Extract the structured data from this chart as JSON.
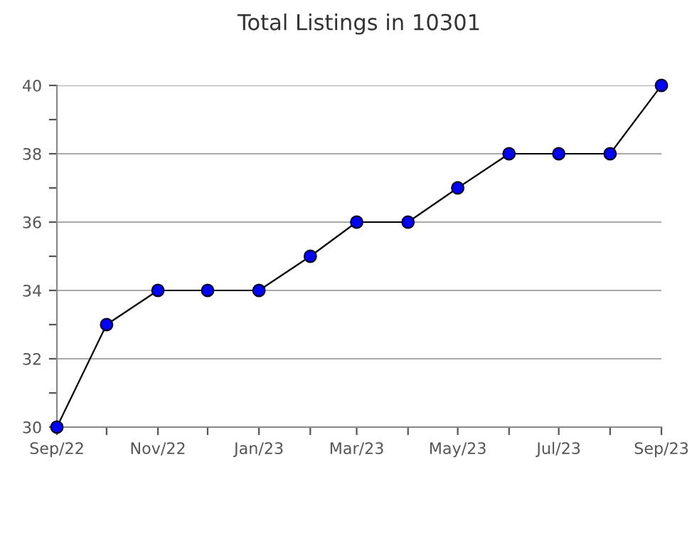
{
  "chart_data": {
    "type": "line",
    "title": "Total Listings in 10301",
    "x": [
      "2022-09",
      "2022-10",
      "2022-11",
      "2022-12",
      "2023-01",
      "2023-02",
      "2023-03",
      "2023-04",
      "2023-05",
      "2023-06",
      "2023-07",
      "2023-08",
      "2023-09"
    ],
    "series": [
      {
        "color": "#000000",
        "colors": [
          "#0000ff",
          "#0000ff",
          "#0000ff",
          "#0000ff",
          "#0000ff",
          "#0000ff",
          "#0000ff",
          "#0000ff",
          "#0000ff",
          "#0000ff",
          "#0000ff",
          "#0000ff",
          "#0000ff"
        ],
        "values": [
          30,
          33,
          34,
          34,
          34,
          35,
          36,
          36,
          37,
          38,
          38,
          38,
          40
        ]
      }
    ],
    "xlim": [
      "2022-09",
      "2023-09"
    ],
    "xticks": [
      {
        "value": "2022-09",
        "label": "Sep/22"
      },
      {
        "value": "2022-10",
        "label": null
      },
      {
        "value": "2022-11",
        "label": "Nov/22"
      },
      {
        "value": "2022-12",
        "label": null
      },
      {
        "value": "2023-01",
        "label": "Jan/23"
      },
      {
        "value": "2023-02",
        "label": null
      },
      {
        "value": "2023-03",
        "label": "Mar/23"
      },
      {
        "value": "2023-04",
        "label": null
      },
      {
        "value": "2023-05",
        "label": "May/23"
      },
      {
        "value": "2023-06",
        "label": null
      },
      {
        "value": "2023-07",
        "label": "Jul/23"
      },
      {
        "value": "2023-08",
        "label": null
      },
      {
        "value": "2023-09",
        "label": "Sep/23"
      }
    ],
    "ylim": [
      30,
      40
    ],
    "yticks": [
      30,
      {
        "value": 31,
        "label": null
      },
      32,
      {
        "value": 33,
        "label": null
      },
      34,
      {
        "value": 35,
        "label": null
      },
      36,
      {
        "value": 37,
        "label": null
      },
      38,
      {
        "value": 39,
        "label": null
      },
      40
    ],
    "grid": "y",
    "marker": "circle",
    "line_style": "solid",
    "legend": false
  }
}
